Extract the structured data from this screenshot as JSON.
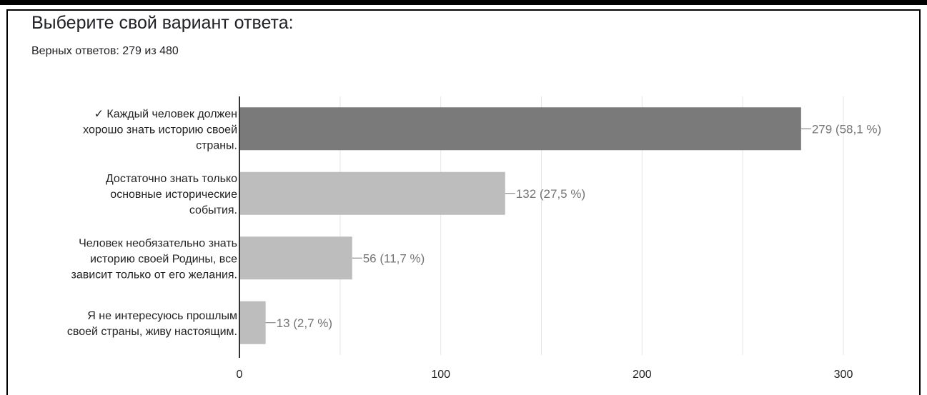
{
  "question": {
    "title": "Выберите свой вариант ответа:",
    "correct_summary": "Верных ответов: 279 из 480"
  },
  "colors": {
    "correct_bar": "#7a7a7a",
    "other_bar": "#bdbdbd",
    "grid": "#e6e6e6",
    "axis": "#333333",
    "value_text": "#757575"
  },
  "chart_data": {
    "type": "bar",
    "orientation": "horizontal",
    "title": "Выберите свой вариант ответа:",
    "subtitle": "Верных ответов: 279 из 480",
    "categories": [
      [
        "✓ Каждый человек должен",
        "хорошо знать историю своей",
        "страны."
      ],
      [
        "Достаточно знать только",
        "основные исторические",
        "события."
      ],
      [
        "Человек необязательно знать",
        "историю своей Родины, все",
        "зависит только от его желания."
      ],
      [
        "Я не интересуюсь прошлым",
        "своей страны, живу настоящим."
      ]
    ],
    "values": [
      279,
      132,
      56,
      13
    ],
    "value_labels": [
      "279 (58,1 %)",
      "132 (27,5 %)",
      "56 (11,7 %)",
      "13 (2,7 %)"
    ],
    "correct": [
      true,
      false,
      false,
      false
    ],
    "xlim": [
      0,
      300
    ],
    "xticks": [
      0,
      100,
      200,
      300
    ],
    "grid": true
  }
}
